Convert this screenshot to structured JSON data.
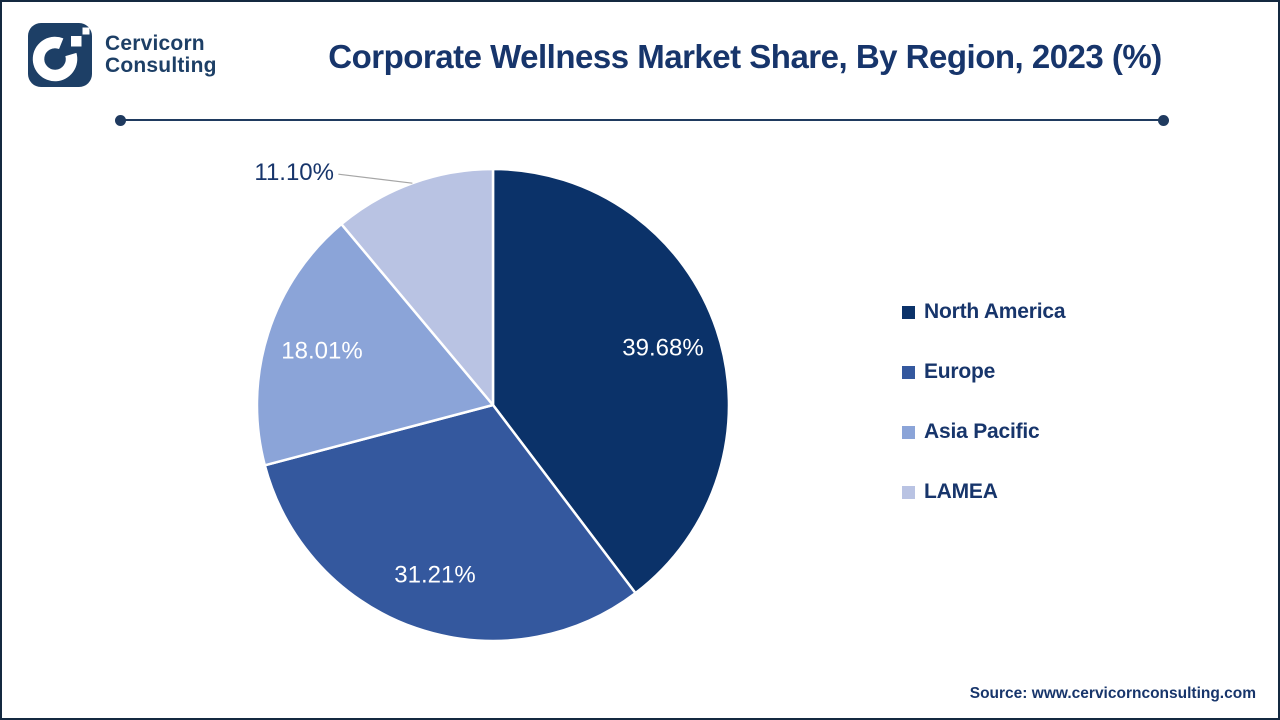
{
  "brand": {
    "line1": "Cervicorn",
    "line2": "Consulting"
  },
  "header": {
    "title": "Corporate Wellness Market Share, By Region, 2023 (%)"
  },
  "chart_data": {
    "type": "pie",
    "title": "Corporate Wellness Market Share, By Region, 2023 (%)",
    "categories": [
      "North America",
      "Europe",
      "Asia Pacific",
      "LAMEA"
    ],
    "values": [
      39.68,
      31.21,
      18.01,
      11.1
    ],
    "labels": [
      "39.68%",
      "31.21%",
      "18.01%",
      "11.10%"
    ],
    "colors": [
      "#0b3269",
      "#34589e",
      "#8ba4d8",
      "#b9c3e3"
    ],
    "label_text_colors": [
      "#ffffff",
      "#ffffff",
      "#ffffff",
      "#17356b"
    ],
    "start_angle_deg": 0,
    "direction": "clockwise",
    "legend_position": "right",
    "donut": false
  },
  "source": {
    "text": "Source: www.cervicornconsulting.com"
  },
  "theme": {
    "text_navy": "#17356b",
    "brand_text": "#1d3f66",
    "divider": "#1f3a5f",
    "border": "#142940",
    "leader_line": "#a6a6a6",
    "background": "#ffffff"
  }
}
